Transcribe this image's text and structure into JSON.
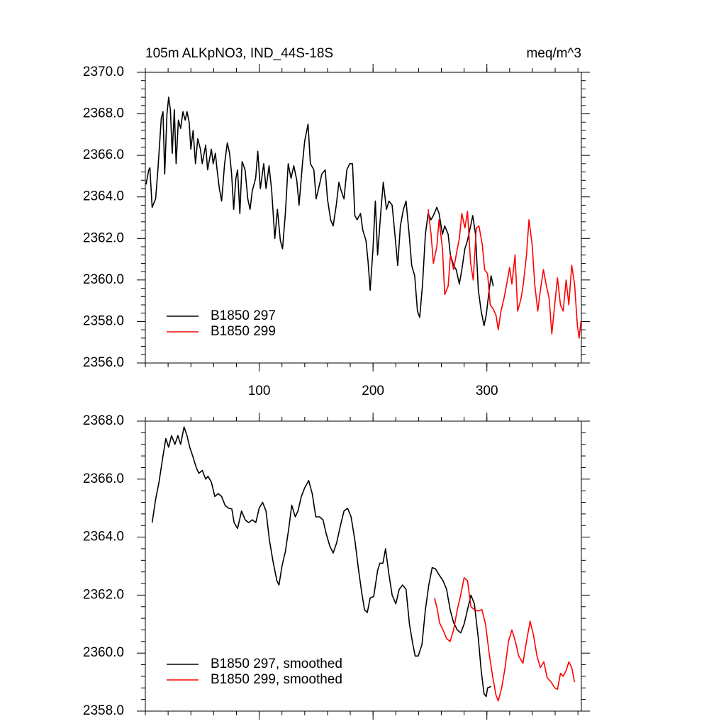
{
  "chart_data": [
    {
      "type": "line",
      "title": "105m ALKpNO3, IND_44S-18S",
      "units": "meq/m^3",
      "xlim": [
        0,
        383
      ],
      "xticks": [
        100,
        200,
        300
      ],
      "xticklabels": true,
      "ylim": [
        2356,
        2370
      ],
      "yticks": [
        {
          "value": 2356,
          "label": "2356.0"
        },
        {
          "value": 2358,
          "label": "2358.0"
        },
        {
          "value": 2360,
          "label": "2360.0"
        },
        {
          "value": 2362,
          "label": "2362.0"
        },
        {
          "value": 2364,
          "label": "2364.0"
        },
        {
          "value": 2366,
          "label": "2366.0"
        },
        {
          "value": 2368,
          "label": "2368.0"
        },
        {
          "value": 2370,
          "label": "2370.0"
        }
      ],
      "legend": "lower left",
      "series": [
        {
          "name": "B1850 297",
          "color": "#000000",
          "x": [
            0.6,
            3,
            4,
            6,
            9,
            11,
            14,
            15.5,
            17,
            19,
            20.5,
            22,
            23.6,
            25.5,
            27,
            29,
            31,
            33,
            35,
            36.6,
            38.5,
            40,
            42,
            44,
            46,
            48.4,
            50,
            53,
            54.7,
            58,
            59.6,
            61.5,
            63,
            65,
            67,
            69.6,
            72,
            74,
            75.8,
            77.6,
            79.5,
            81,
            83,
            85,
            87.6,
            90,
            92,
            94,
            96.9,
            98.8,
            101,
            104,
            106,
            108.7,
            111,
            113.7,
            116,
            118.6,
            120.5,
            123,
            125.5,
            128,
            130.4,
            133,
            135,
            138,
            140,
            142.9,
            145,
            148,
            150,
            153,
            155,
            158,
            160,
            162.7,
            165,
            167.7,
            170,
            172,
            174.5,
            177,
            179.5,
            182,
            184,
            186,
            189,
            191,
            193.8,
            195.6,
            197.5,
            200,
            202,
            204,
            207,
            209,
            211.8,
            214,
            216.8,
            219,
            221.7,
            224,
            226.7,
            229,
            231.7,
            234,
            236.6,
            239,
            241,
            243.5,
            246,
            248.4,
            251,
            253,
            256,
            258,
            261,
            263,
            266,
            268,
            270.8,
            273,
            275.8,
            278,
            280.7,
            283,
            285.7,
            287.6,
            290,
            292.5,
            295,
            297.5,
            299.4,
            302,
            303.7,
            305.6
          ],
          "values": [
            2364.6,
            2365.3,
            2365.4,
            2363.5,
            2363.9,
            2365.3,
            2367.8,
            2368.1,
            2365.1,
            2368.0,
            2368.8,
            2368.2,
            2366.1,
            2368.2,
            2365.6,
            2367.7,
            2367.3,
            2368.1,
            2367.7,
            2368.1,
            2367.6,
            2366.3,
            2367.2,
            2365.6,
            2366.8,
            2366.3,
            2365.6,
            2366.5,
            2365.3,
            2366.3,
            2365.6,
            2366.1,
            2365.3,
            2364.4,
            2363.8,
            2365.6,
            2366.6,
            2366.1,
            2365.1,
            2363.4,
            2364.9,
            2365.3,
            2363.2,
            2365.7,
            2365.3,
            2363.9,
            2363.4,
            2364.3,
            2364.9,
            2366.2,
            2364.4,
            2365.6,
            2364.4,
            2365.5,
            2364.3,
            2362.0,
            2363.4,
            2361.9,
            2361.5,
            2363.2,
            2365.6,
            2364.9,
            2365.5,
            2364.8,
            2363.6,
            2365.6,
            2366.7,
            2367.5,
            2365.6,
            2365.3,
            2363.9,
            2364.6,
            2365.1,
            2365.3,
            2363.9,
            2362.9,
            2362.6,
            2363.6,
            2364.7,
            2364.3,
            2363.9,
            2365.3,
            2365.6,
            2365.6,
            2363.1,
            2362.9,
            2363.2,
            2362.4,
            2361.9,
            2360.9,
            2359.5,
            2361.5,
            2363.8,
            2361.2,
            2363.4,
            2364.7,
            2363.4,
            2363.8,
            2363.6,
            2362.3,
            2360.7,
            2362.6,
            2363.4,
            2363.8,
            2362.2,
            2360.7,
            2360.2,
            2358.5,
            2358.2,
            2359.8,
            2362.2,
            2363.2,
            2362.9,
            2363.1,
            2363.5,
            2363.2,
            2362.2,
            2362.6,
            2362.2,
            2361.2,
            2360.7,
            2360.5,
            2359.8,
            2360.5,
            2361.5,
            2361.9,
            2362.6,
            2363.1,
            2362.2,
            2359.5,
            2358.5,
            2357.8,
            2358.3,
            2359.5,
            2360.2,
            2359.7
          ]
        },
        {
          "name": "B1850 299",
          "color": "#ff0000",
          "x": [
            248.4,
            251,
            253,
            256,
            258,
            261,
            263,
            266,
            268,
            270.8,
            273,
            275.8,
            278,
            280.7,
            283,
            285.7,
            288,
            290.7,
            293,
            296,
            298,
            300.6,
            303,
            305.6,
            308,
            310,
            312.4,
            315,
            317.4,
            320,
            322,
            324.8,
            327,
            330,
            332,
            334.8,
            337,
            339.8,
            342,
            344.7,
            347,
            349.7,
            352,
            354.7,
            357,
            359.6,
            362,
            364.6,
            367,
            369.6,
            372,
            374.5,
            377,
            379.5,
            381,
            382.6
          ],
          "values": [
            2363.4,
            2362.2,
            2360.8,
            2361.6,
            2362.9,
            2361.5,
            2359.3,
            2359.7,
            2361.2,
            2360.5,
            2361.2,
            2362.0,
            2363.2,
            2362.5,
            2363.3,
            2360.8,
            2360.0,
            2362.5,
            2362.6,
            2361.7,
            2360.5,
            2360.3,
            2358.8,
            2358.6,
            2358.3,
            2357.6,
            2358.5,
            2359.1,
            2359.8,
            2360.6,
            2359.8,
            2361.2,
            2358.5,
            2359.1,
            2359.8,
            2361.2,
            2362.9,
            2361.7,
            2359.8,
            2358.5,
            2359.5,
            2360.5,
            2359.8,
            2359.1,
            2357.4,
            2358.8,
            2360.1,
            2358.8,
            2358.5,
            2360.0,
            2358.8,
            2360.7,
            2359.8,
            2357.8,
            2357.2,
            2358.0
          ]
        }
      ]
    },
    {
      "type": "line",
      "xlim": [
        0,
        383
      ],
      "xticks": [
        100,
        200,
        300
      ],
      "xticklabels": false,
      "ylim": [
        2358,
        2368
      ],
      "yticks": [
        {
          "value": 2358,
          "label": "2358.0"
        },
        {
          "value": 2360,
          "label": "2360.0"
        },
        {
          "value": 2362,
          "label": "2362.0"
        },
        {
          "value": 2364,
          "label": "2364.0"
        },
        {
          "value": 2366,
          "label": "2366.0"
        },
        {
          "value": 2368,
          "label": "2368.0"
        }
      ],
      "legend": "lower left",
      "series": [
        {
          "name": "B1850 297, smoothed",
          "color": "#000000",
          "x": [
            6,
            9,
            12,
            15.5,
            18,
            20.5,
            23,
            26,
            28.6,
            31,
            34,
            36.6,
            39,
            41.6,
            44.7,
            47,
            50,
            53,
            55,
            58,
            61,
            64,
            67,
            70,
            73,
            76,
            78,
            81,
            84.5,
            87.6,
            90.7,
            94,
            97,
            100,
            103,
            106,
            109,
            112,
            115.5,
            117.4,
            120,
            123,
            126,
            128.6,
            131.7,
            134,
            137,
            140,
            143.5,
            146.6,
            149.7,
            153,
            156,
            159,
            162,
            165,
            168,
            171.4,
            174.5,
            177.6,
            180.7,
            184,
            187,
            190,
            192.5,
            195,
            197.5,
            200.6,
            204,
            206,
            208.7,
            211,
            213.7,
            216.8,
            220,
            223,
            226,
            229,
            232,
            235,
            237,
            239.7,
            243,
            246,
            249,
            252,
            255,
            258,
            261.5,
            264.6,
            267.7,
            270.8,
            274,
            277,
            280,
            283,
            286,
            289,
            292.5,
            295,
            297.5,
            299.4,
            300.6,
            303.7
          ],
          "values": [
            2364.5,
            2365.3,
            2365.9,
            2366.8,
            2367.4,
            2367.1,
            2367.5,
            2367.2,
            2367.5,
            2367.2,
            2367.8,
            2367.5,
            2367.1,
            2366.8,
            2366.4,
            2366.2,
            2366.3,
            2366.0,
            2366.1,
            2365.9,
            2365.4,
            2365.5,
            2365.4,
            2365.1,
            2365.0,
            2364.97,
            2364.5,
            2364.3,
            2364.9,
            2364.6,
            2364.5,
            2364.6,
            2364.5,
            2365.0,
            2365.2,
            2364.9,
            2363.9,
            2363.2,
            2362.5,
            2362.35,
            2363.0,
            2363.5,
            2364.3,
            2365.1,
            2364.7,
            2364.9,
            2365.4,
            2365.7,
            2365.95,
            2365.5,
            2364.7,
            2364.7,
            2364.6,
            2364.1,
            2363.7,
            2363.45,
            2363.8,
            2364.4,
            2364.9,
            2365.0,
            2364.7,
            2363.9,
            2362.95,
            2362.1,
            2361.5,
            2361.4,
            2361.9,
            2361.95,
            2362.85,
            2363.1,
            2363.1,
            2363.6,
            2362.8,
            2362.0,
            2361.7,
            2362.2,
            2362.35,
            2362.2,
            2361.0,
            2360.3,
            2359.9,
            2359.9,
            2360.3,
            2361.5,
            2362.35,
            2362.95,
            2362.9,
            2362.7,
            2362.5,
            2362.2,
            2361.5,
            2361.05,
            2360.8,
            2360.7,
            2361.0,
            2361.5,
            2362.0,
            2361.7,
            2360.5,
            2359.4,
            2358.6,
            2358.5,
            2358.8,
            2358.85
          ]
        },
        {
          "name": "B1850 299, smoothed",
          "color": "#ff0000",
          "x": [
            254,
            256.5,
            258.4,
            261.5,
            264.6,
            267.7,
            270.8,
            274,
            277,
            280,
            283,
            286,
            289,
            292.5,
            295.6,
            298.8,
            302,
            305,
            308,
            310,
            313,
            316,
            319,
            322,
            325,
            328,
            331.7,
            334.8,
            338,
            341,
            344,
            347,
            350,
            353,
            356.5,
            359.6,
            362,
            364.6,
            367,
            369.6,
            372,
            374.5,
            377
          ],
          "values": [
            2361.9,
            2361.5,
            2361.05,
            2360.8,
            2360.5,
            2360.4,
            2360.8,
            2361.5,
            2362.0,
            2362.6,
            2362.5,
            2361.6,
            2361.5,
            2361.45,
            2361.5,
            2361.0,
            2360.0,
            2359.2,
            2358.55,
            2358.35,
            2358.8,
            2359.5,
            2360.4,
            2360.8,
            2360.4,
            2359.9,
            2359.65,
            2360.4,
            2361.1,
            2360.6,
            2359.9,
            2359.5,
            2359.7,
            2359.15,
            2359.0,
            2358.8,
            2358.75,
            2359.3,
            2359.2,
            2359.4,
            2359.7,
            2359.5,
            2359.0
          ]
        }
      ]
    }
  ]
}
